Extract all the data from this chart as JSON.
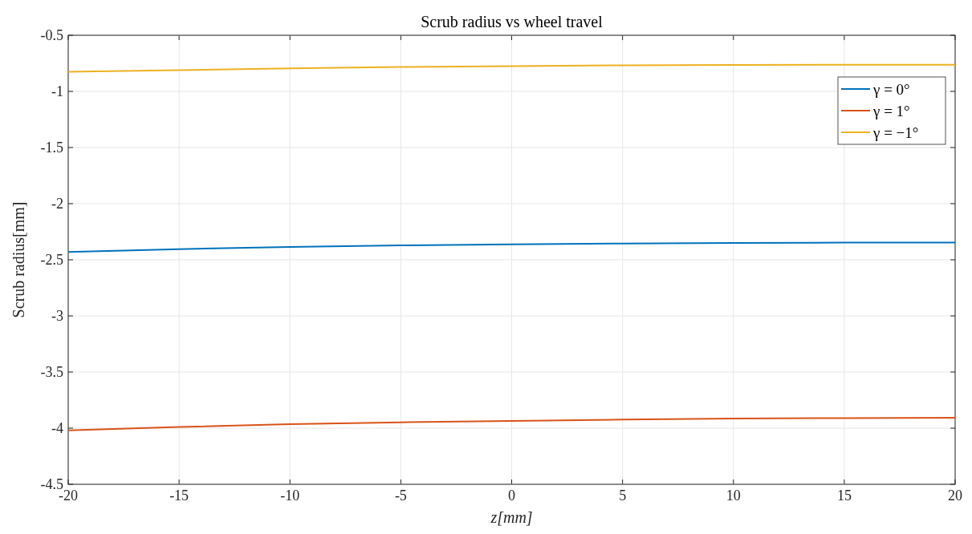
{
  "chart_data": {
    "type": "line",
    "title": "Scrub radius vs wheel travel",
    "xlabel": "z[mm]",
    "ylabel": "Scrub radius[mm]",
    "x": [
      -20,
      -15,
      -10,
      -5,
      0,
      5,
      10,
      15,
      20
    ],
    "series": [
      {
        "name": "γ = 0°",
        "color": "#0072bd",
        "values": [
          -2.43,
          -2.405,
          -2.385,
          -2.372,
          -2.363,
          -2.355,
          -2.35,
          -2.347,
          -2.347
        ]
      },
      {
        "name": "γ = 1°",
        "color": "#d95319",
        "values": [
          -4.02,
          -3.99,
          -3.965,
          -3.948,
          -3.935,
          -3.924,
          -3.915,
          -3.91,
          -3.907
        ]
      },
      {
        "name": "γ = −1°",
        "color": "#edb120",
        "values": [
          -0.825,
          -0.81,
          -0.795,
          -0.783,
          -0.775,
          -0.768,
          -0.764,
          -0.762,
          -0.762
        ]
      }
    ],
    "xlim": [
      -20,
      20
    ],
    "xticks": [
      -20,
      -15,
      -10,
      -5,
      0,
      5,
      10,
      15,
      20
    ],
    "ylim": [
      -4.5,
      -0.5
    ],
    "yticks": [
      -4.5,
      -4,
      -3.5,
      -3,
      -2.5,
      -2,
      -1.5,
      -1,
      -0.5
    ],
    "grid": true,
    "legend": "top right",
    "marker": "none",
    "line_style": "solid"
  }
}
